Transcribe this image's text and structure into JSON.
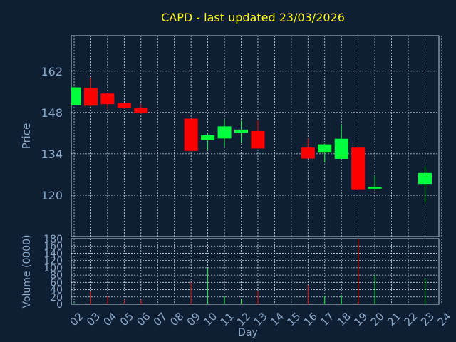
{
  "chart_data": {
    "type": "candlestick",
    "title": "CAPD - last updated 23/03/2026",
    "price_panel": {
      "ylabel": "Price",
      "ylim": [
        106,
        174
      ],
      "yticks": [
        120,
        134,
        148,
        162
      ]
    },
    "volume_panel": {
      "ylabel": "Volume (0000)",
      "xlabel": "Day",
      "ylim": [
        0,
        180
      ],
      "yticks": [
        0,
        20,
        40,
        60,
        80,
        100,
        120,
        140,
        160,
        180
      ]
    },
    "x_ticks": [
      "02",
      "03",
      "04",
      "05",
      "06",
      "07",
      "08",
      "09",
      "10",
      "11",
      "12",
      "13",
      "14",
      "15",
      "16",
      "17",
      "18",
      "19",
      "20",
      "21",
      "22",
      "23",
      "24"
    ],
    "candles": [
      {
        "day": "02",
        "open": 150.4,
        "high": 156.7,
        "low": 150.4,
        "close": 156.5,
        "volume": 3
      },
      {
        "day": "03",
        "open": 156.3,
        "high": 159.7,
        "low": 150.1,
        "close": 150.3,
        "volume": 35
      },
      {
        "day": "04",
        "open": 154.4,
        "high": 154.4,
        "low": 149.2,
        "close": 150.8,
        "volume": 22
      },
      {
        "day": "05",
        "open": 151.2,
        "high": 151.2,
        "low": 149.2,
        "close": 149.5,
        "volume": 13
      },
      {
        "day": "06",
        "open": 149.4,
        "high": 150.8,
        "low": 147.5,
        "close": 147.8,
        "volume": 12
      },
      {
        "day": "09",
        "open": 145.9,
        "high": 145.9,
        "low": 134.9,
        "close": 135.0,
        "volume": 60
      },
      {
        "day": "10",
        "open": 138.6,
        "high": 140.8,
        "low": 135.2,
        "close": 140.3,
        "volume": 100
      },
      {
        "day": "11",
        "open": 139.2,
        "high": 145.7,
        "low": 136.4,
        "close": 143.3,
        "volume": 22
      },
      {
        "day": "12",
        "open": 141.1,
        "high": 145.2,
        "low": 137.6,
        "close": 142.2,
        "volume": 14
      },
      {
        "day": "13",
        "open": 141.7,
        "high": 145.2,
        "low": 135.8,
        "close": 135.8,
        "volume": 37
      },
      {
        "day": "16",
        "open": 136.1,
        "high": 139.2,
        "low": 132.4,
        "close": 132.4,
        "volume": 52
      },
      {
        "day": "17",
        "open": 134.4,
        "high": 137.5,
        "low": 131.0,
        "close": 137.2,
        "volume": 23
      },
      {
        "day": "18",
        "open": 132.3,
        "high": 143.8,
        "low": 132.3,
        "close": 139.1,
        "volume": 25
      },
      {
        "day": "19",
        "open": 136.1,
        "high": 136.1,
        "low": 122.0,
        "close": 122.0,
        "volume": 178
      },
      {
        "day": "20",
        "open": 122.2,
        "high": 126.6,
        "low": 122.0,
        "close": 122.8,
        "volume": 80
      },
      {
        "day": "23",
        "open": 123.8,
        "high": 129.7,
        "low": 117.6,
        "close": 127.5,
        "volume": 72
      }
    ]
  },
  "colors": {
    "background": "#0f1f33",
    "plot_background": "#0f1f33",
    "frame": "#b8c8d8",
    "grid": "#c8d4e0",
    "title": "#ffff00",
    "axis_text": "#8aa8c8",
    "up": "#00ff3c",
    "down": "#ff0000"
  }
}
